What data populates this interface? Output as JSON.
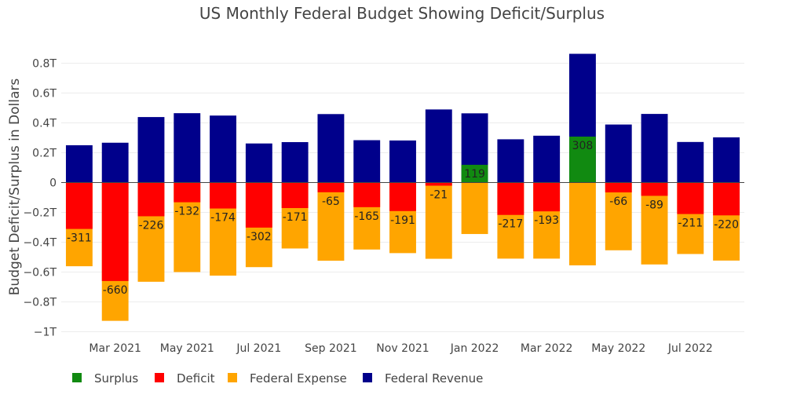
{
  "chart_data": {
    "type": "bar",
    "title": "US Monthly Federal Budget Showing Deficit/Surplus",
    "ylabel": "Budget Deficit/Surplus in Dollars",
    "xlabel": "",
    "ylim": [
      -1.0,
      0.9
    ],
    "yunit": "trillion USD",
    "yticks": [
      {
        "value": 0.8,
        "label": "0.8T"
      },
      {
        "value": 0.6,
        "label": "0.6T"
      },
      {
        "value": 0.4,
        "label": "0.4T"
      },
      {
        "value": 0.2,
        "label": "0.2T"
      },
      {
        "value": 0,
        "label": "0"
      },
      {
        "value": -0.2,
        "label": "−0.2T"
      },
      {
        "value": -0.4,
        "label": "−0.4T"
      },
      {
        "value": -0.6,
        "label": "−0.6T"
      },
      {
        "value": -0.8,
        "label": "−0.8T"
      },
      {
        "value": -1.0,
        "label": "−1T"
      }
    ],
    "categories": [
      "Feb 2021",
      "Mar 2021",
      "Apr 2021",
      "May 2021",
      "Jun 2021",
      "Jul 2021",
      "Aug 2021",
      "Sep 2021",
      "Oct 2021",
      "Nov 2021",
      "Dec 2021",
      "Jan 2022",
      "Feb 2022",
      "Mar 2022",
      "Apr 2022",
      "May 2022",
      "Jun 2022",
      "Jul 2022",
      "Aug 2022"
    ],
    "xtick_labels": [
      {
        "category": "Mar 2021",
        "label": "Mar 2021"
      },
      {
        "category": "May 2021",
        "label": "May 2021"
      },
      {
        "category": "Jul 2021",
        "label": "Jul 2021"
      },
      {
        "category": "Sep 2021",
        "label": "Sep 2021"
      },
      {
        "category": "Nov 2021",
        "label": "Nov 2021"
      },
      {
        "category": "Jan 2022",
        "label": "Jan 2022"
      },
      {
        "category": "Mar 2022",
        "label": "Mar 2022"
      },
      {
        "category": "May 2022",
        "label": "May 2022"
      },
      {
        "category": "Jul 2022",
        "label": "Jul 2022"
      }
    ],
    "series": [
      {
        "name": "Surplus",
        "color": "#118a11",
        "values": [
          0,
          0,
          0,
          0,
          0,
          0,
          0,
          0,
          0,
          0,
          0,
          0.119,
          0,
          0,
          0.308,
          0,
          0,
          0,
          0
        ]
      },
      {
        "name": "Deficit",
        "color": "#ff0000",
        "values": [
          -0.311,
          -0.66,
          -0.226,
          -0.132,
          -0.174,
          -0.302,
          -0.171,
          -0.065,
          -0.165,
          -0.191,
          -0.021,
          0,
          -0.217,
          -0.193,
          0,
          -0.066,
          -0.089,
          -0.211,
          -0.22
        ]
      },
      {
        "name": "Federal Expense",
        "color": "#ffa500",
        "values": [
          -0.561,
          -0.927,
          -0.665,
          -0.6,
          -0.624,
          -0.567,
          -0.442,
          -0.524,
          -0.449,
          -0.473,
          -0.511,
          -0.345,
          -0.51,
          -0.51,
          -0.555,
          -0.454,
          -0.549,
          -0.479,
          -0.523
        ]
      },
      {
        "name": "Federal Revenue",
        "color": "#00008b",
        "values": [
          0.25,
          0.267,
          0.439,
          0.465,
          0.449,
          0.262,
          0.271,
          0.459,
          0.284,
          0.282,
          0.49,
          0.464,
          0.29,
          0.314,
          0.863,
          0.389,
          0.46,
          0.272,
          0.303
        ]
      }
    ],
    "data_labels": [
      "-311",
      "-660",
      "-226",
      "-132",
      "-174",
      "-302",
      "-171",
      "-65",
      "-165",
      "-191",
      "-21",
      "119",
      "-217",
      "-193",
      "308",
      "-66",
      "-89",
      "-211",
      "-220"
    ],
    "grid": true,
    "legend_position": "bottom-left"
  }
}
